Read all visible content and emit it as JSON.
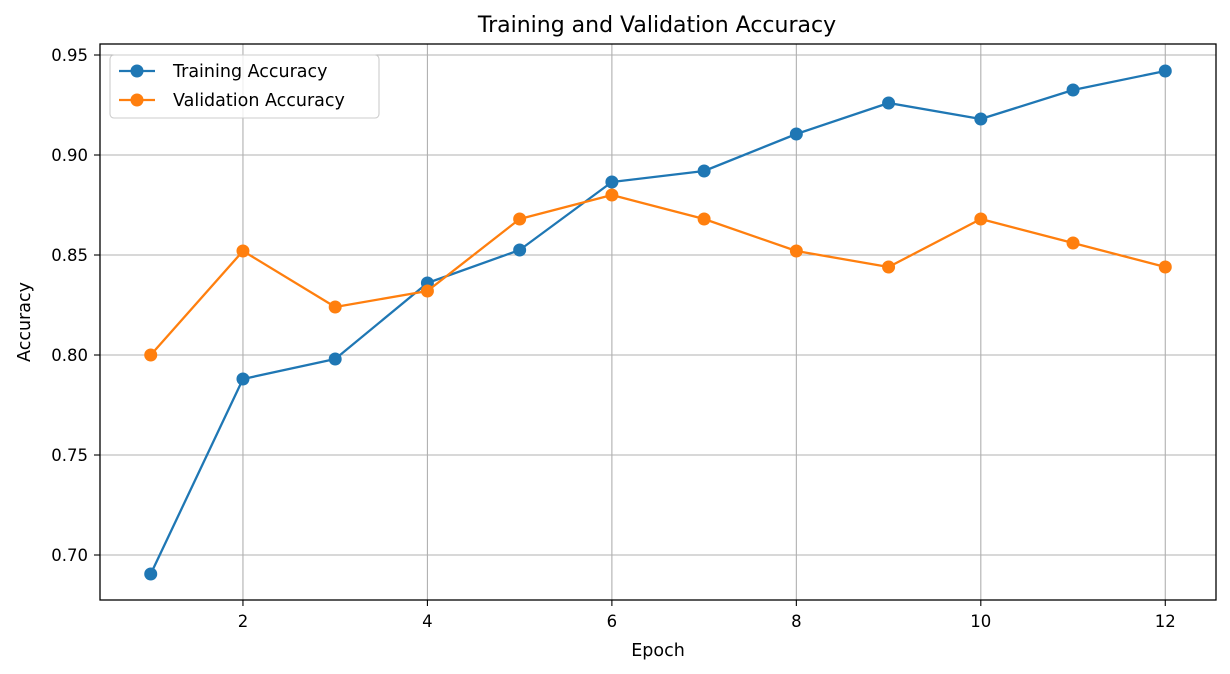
{
  "chart_data": {
    "type": "line",
    "title": "Training and Validation Accuracy",
    "xlabel": "Epoch",
    "ylabel": "Accuracy",
    "x": [
      1,
      2,
      3,
      4,
      5,
      6,
      7,
      8,
      9,
      10,
      11,
      12
    ],
    "xlim": [
      0.45,
      12.55
    ],
    "ylim": [
      0.6775,
      0.9555
    ],
    "xticks": [
      2,
      4,
      6,
      8,
      10,
      12
    ],
    "xtick_labels": [
      "2",
      "4",
      "6",
      "8",
      "10",
      "12"
    ],
    "yticks": [
      0.7,
      0.75,
      0.8,
      0.85,
      0.9,
      0.95
    ],
    "ytick_labels": [
      "0.70",
      "0.75",
      "0.80",
      "0.85",
      "0.90",
      "0.95"
    ],
    "grid": true,
    "legend_position": "top-left",
    "series": [
      {
        "name": "Training Accuracy",
        "color": "#1f77b4",
        "values": [
          0.6905,
          0.788,
          0.798,
          0.836,
          0.8525,
          0.8865,
          0.892,
          0.9105,
          0.926,
          0.918,
          0.9325,
          0.942
        ]
      },
      {
        "name": "Validation Accuracy",
        "color": "#ff7f0e",
        "values": [
          0.8,
          0.852,
          0.824,
          0.832,
          0.868,
          0.88,
          0.868,
          0.852,
          0.844,
          0.868,
          0.856,
          0.844
        ]
      }
    ]
  }
}
